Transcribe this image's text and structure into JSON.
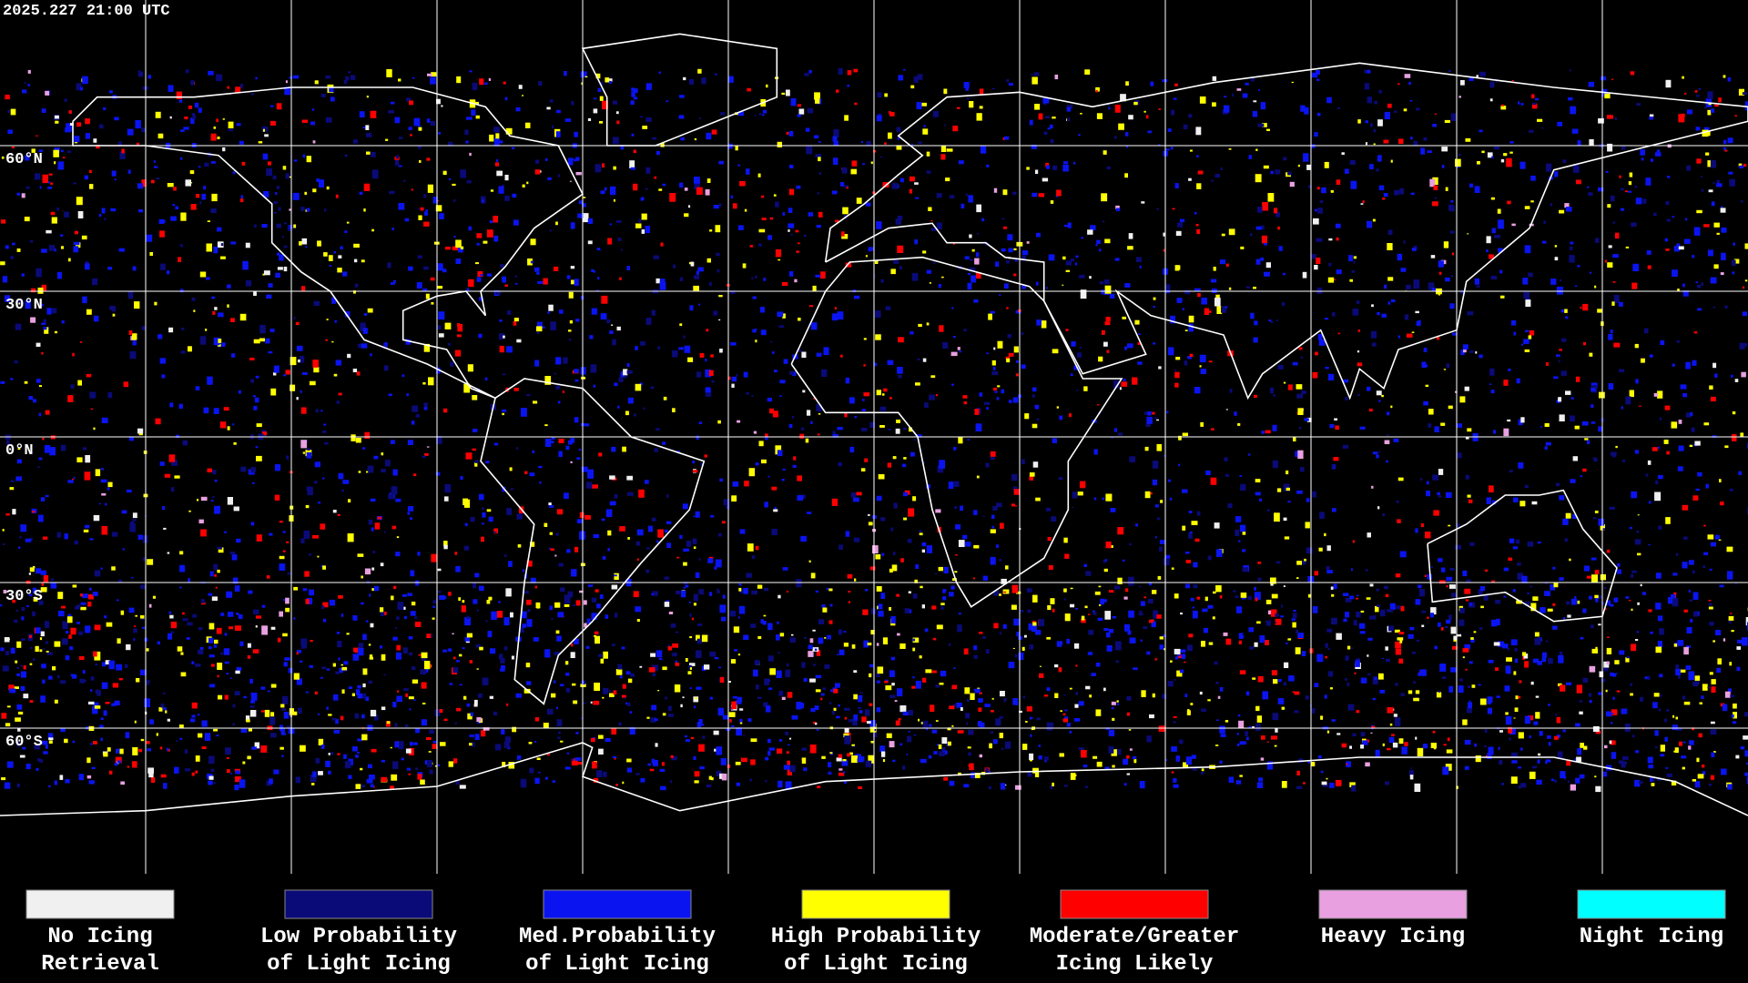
{
  "timestamp": "2025.227 21:00 UTC",
  "latitude_labels": [
    "60°N",
    "30°N",
    "0°N",
    "30°S",
    "60°S"
  ],
  "legend": [
    {
      "label": [
        "No Icing",
        "Retrieval"
      ],
      "color": "#f0f0f0"
    },
    {
      "label": [
        "Low Probability",
        "of Light Icing"
      ],
      "color": "#0a0a78"
    },
    {
      "label": [
        "Med.Probability",
        "of Light Icing"
      ],
      "color": "#0a14f0"
    },
    {
      "label": [
        "High Probability",
        "of Light Icing"
      ],
      "color": "#ffff00"
    },
    {
      "label": [
        "Moderate/Greater",
        "Icing Likely"
      ],
      "color": "#ff0000"
    },
    {
      "label": [
        "Heavy Icing"
      ],
      "color": "#e8a0e0"
    },
    {
      "label": [
        "Night Icing"
      ],
      "color": "#00ffff"
    }
  ]
}
